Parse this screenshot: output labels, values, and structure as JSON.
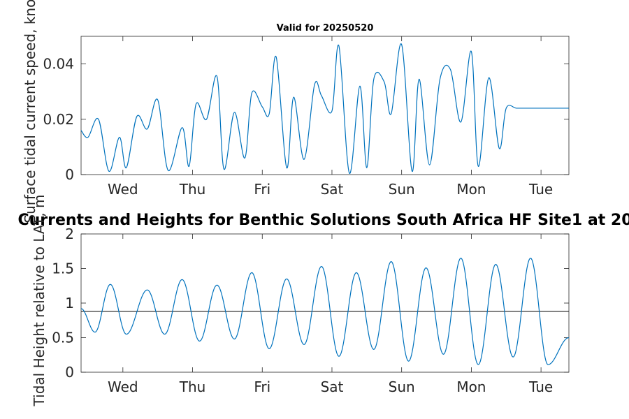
{
  "chart_data": [
    {
      "type": "line",
      "title": "Valid for 20250520",
      "ylabel": "Surface tidal current speed, knots",
      "xlabel": "",
      "ylim": [
        0,
        0.05
      ],
      "yticks": [
        0,
        0.02,
        0.04
      ],
      "ytick_labels": [
        "0",
        "0.02",
        "0.04"
      ],
      "xlim_days": [
        -0.6,
        6.4
      ],
      "x_categories": [
        "Wed",
        "Thu",
        "Fri",
        "Sat",
        "Sun",
        "Mon",
        "Tue"
      ],
      "series": [
        {
          "color": "#0072BD",
          "x": [
            -0.6,
            -0.5,
            -0.35,
            -0.2,
            -0.05,
            0.05,
            0.2,
            0.35,
            0.5,
            0.65,
            0.85,
            0.95,
            1.05,
            1.2,
            1.35,
            1.45,
            1.6,
            1.75,
            1.85,
            2.0,
            2.1,
            2.2,
            2.35,
            2.45,
            2.6,
            2.75,
            2.85,
            3.0,
            3.1,
            3.25,
            3.4,
            3.5,
            3.6,
            3.75,
            3.85,
            4.0,
            4.15,
            4.25,
            4.4,
            4.55,
            4.7,
            4.85,
            5.0,
            5.1,
            5.25,
            5.4,
            5.5,
            5.65,
            5.85,
            6.0,
            6.1,
            6.25,
            6.4
          ],
          "y": [
            0.016,
            0.0135,
            0.02,
            0.0012,
            0.0135,
            0.0025,
            0.021,
            0.0165,
            0.027,
            0.0015,
            0.017,
            0.003,
            0.0255,
            0.02,
            0.0355,
            0.002,
            0.0225,
            0.006,
            0.0295,
            0.0245,
            0.022,
            0.0425,
            0.0025,
            0.028,
            0.0055,
            0.0325,
            0.0285,
            0.023,
            0.0465,
            0.0005,
            0.032,
            0.0025,
            0.0345,
            0.0335,
            0.022,
            0.047,
            0.0012,
            0.0345,
            0.0035,
            0.0345,
            0.038,
            0.019,
            0.0445,
            0.003,
            0.035,
            0.0095,
            0.024,
            0.024,
            0.024,
            0.024,
            0.024,
            0.024,
            0.024
          ]
        }
      ]
    },
    {
      "type": "line",
      "title": "Currents and Heights for Benthic Solutions South Africa HF Site1 at 20",
      "ylabel": "Tidal Height relative to LAT, m",
      "xlabel": "",
      "ylim": [
        0,
        2
      ],
      "yticks": [
        0,
        0.5,
        1,
        1.5,
        2
      ],
      "ytick_labels": [
        "0",
        "0.5",
        "1",
        "1.5",
        "2"
      ],
      "xlim_days": [
        -0.6,
        6.4
      ],
      "x_categories": [
        "Wed",
        "Thu",
        "Fri",
        "Sat",
        "Sun",
        "Mon",
        "Tue"
      ],
      "mean_level": 0.88,
      "series": [
        {
          "color": "#0072BD",
          "extrema_x": [
            -0.6,
            -0.4,
            -0.18,
            0.05,
            0.35,
            0.6,
            0.85,
            1.1,
            1.35,
            1.6,
            1.85,
            2.1,
            2.35,
            2.6,
            2.85,
            3.1,
            3.35,
            3.6,
            3.85,
            4.1,
            4.35,
            4.6,
            4.85,
            5.1,
            5.35,
            5.6,
            5.85,
            6.1,
            6.4
          ],
          "extrema_y": [
            0.92,
            0.58,
            1.27,
            0.55,
            1.19,
            0.55,
            1.34,
            0.45,
            1.26,
            0.48,
            1.44,
            0.34,
            1.35,
            0.4,
            1.53,
            0.23,
            1.44,
            0.33,
            1.6,
            0.16,
            1.51,
            0.26,
            1.65,
            0.11,
            1.56,
            0.22,
            1.65,
            0.11,
            0.5
          ]
        }
      ]
    }
  ]
}
